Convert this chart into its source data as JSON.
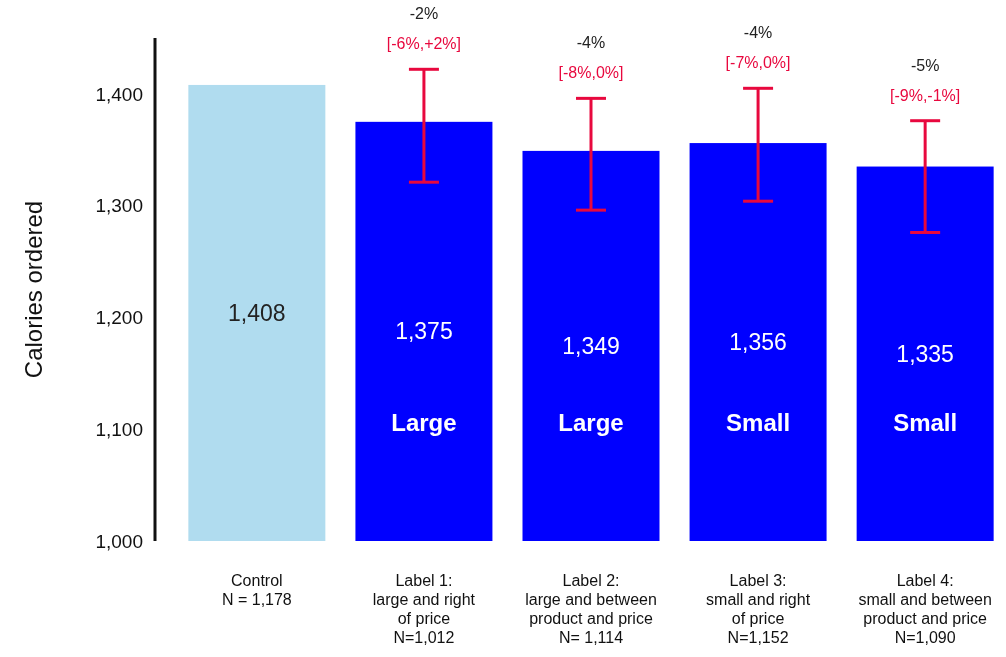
{
  "chart_data": {
    "type": "bar",
    "ylabel": "Calories ordered",
    "categories": [
      "Control\nN = 1,178",
      "Label 1:\nlarge and right\nof price\nN=1,012",
      "Label 2:\nlarge and between\nproduct and price\nN= 1,114",
      "Label 3:\nsmall and right\nof price\nN=1,152",
      "Label 4:\nsmall and between\nproduct and price\nN=1,090"
    ],
    "values": [
      1408,
      1375,
      1349,
      1356,
      1335
    ],
    "colors": [
      "#b0dcef",
      "#0000ff",
      "#0000ff",
      "#0000ff",
      "#0000ff"
    ],
    "errors": [
      null,
      [
        1321,
        1422
      ],
      [
        1296,
        1396
      ],
      [
        1304,
        1405
      ],
      [
        1276,
        1376
      ]
    ],
    "value_labels": [
      "1,408",
      "1,375",
      "1,349",
      "1,356",
      "1,335"
    ],
    "ylim": [
      1000,
      1450
    ],
    "yticks": [
      {
        "value": 1000,
        "label": "1,000"
      },
      {
        "value": 1100,
        "label": "1,100"
      },
      {
        "value": 1200,
        "label": "1,200"
      },
      {
        "value": 1300,
        "label": "1,300"
      },
      {
        "value": 1400,
        "label": "1,400"
      }
    ],
    "grid": false,
    "annotations": [
      {
        "text": "-2%",
        "x": "Label 1:\nlarge and right\nof price\nN=1,012",
        "y": 1422
      },
      {
        "text": "[-6%,+2%]",
        "x": "Label 1:\nlarge and right\nof price\nN=1,012",
        "y": 1422
      },
      {
        "text": "-4%",
        "x": "Label 2:\nlarge and between\nproduct and price\nN= 1,114",
        "y": 1396
      },
      {
        "text": "[-8%,0%]",
        "x": "Label 2:\nlarge and between\nproduct and price\nN= 1,114",
        "y": 1396
      },
      {
        "text": "-4%",
        "x": "Label 3:\nsmall and right\nof price\nN=1,152",
        "y": 1405
      },
      {
        "text": "[-7%,0%]",
        "x": "Label 3:\nsmall and right\nof price\nN=1,152",
        "y": 1405
      },
      {
        "text": "-5%",
        "x": "Label 4:\nsmall and between\nproduct and price\nN=1,090",
        "y": 1376
      },
      {
        "text": "[-9%,-1%]",
        "x": "Label 4:\nsmall and between\nproduct and price\nN=1,090",
        "y": 1376
      },
      "Large",
      "Large",
      "Small",
      "Small"
    ]
  }
}
